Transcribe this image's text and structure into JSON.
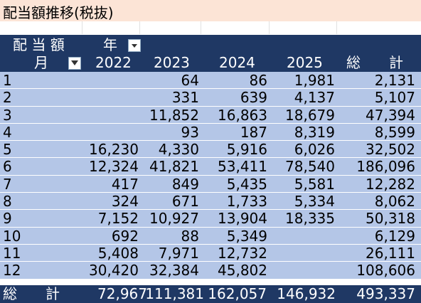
{
  "title": "配当額推移(税抜)",
  "header": {
    "corner_label": "配 当 額",
    "col_field_label": "年",
    "row_field_label": "月",
    "years": [
      "2022",
      "2023",
      "2024",
      "2025"
    ],
    "total_label": "総　　計"
  },
  "rows": [
    {
      "month": "1",
      "y2022": "",
      "y2023": "64",
      "y2024": "86",
      "y2025": "1,981",
      "total": "2,131"
    },
    {
      "month": "2",
      "y2022": "",
      "y2023": "331",
      "y2024": "639",
      "y2025": "4,137",
      "total": "5,107"
    },
    {
      "month": "3",
      "y2022": "",
      "y2023": "11,852",
      "y2024": "16,863",
      "y2025": "18,679",
      "total": "47,394"
    },
    {
      "month": "4",
      "y2022": "",
      "y2023": "93",
      "y2024": "187",
      "y2025": "8,319",
      "total": "8,599"
    },
    {
      "month": "5",
      "y2022": "16,230",
      "y2023": "4,330",
      "y2024": "5,916",
      "y2025": "6,026",
      "total": "32,502"
    },
    {
      "month": "6",
      "y2022": "12,324",
      "y2023": "41,821",
      "y2024": "53,411",
      "y2025": "78,540",
      "total": "186,096"
    },
    {
      "month": "7",
      "y2022": "417",
      "y2023": "849",
      "y2024": "5,435",
      "y2025": "5,581",
      "total": "12,282"
    },
    {
      "month": "8",
      "y2022": "324",
      "y2023": "671",
      "y2024": "1,733",
      "y2025": "5,334",
      "total": "8,062"
    },
    {
      "month": "9",
      "y2022": "7,152",
      "y2023": "10,927",
      "y2024": "13,904",
      "y2025": "18,335",
      "total": "50,318"
    },
    {
      "month": "10",
      "y2022": "692",
      "y2023": "88",
      "y2024": "5,349",
      "y2025": "",
      "total": "6,129"
    },
    {
      "month": "11",
      "y2022": "5,408",
      "y2023": "7,971",
      "y2024": "12,732",
      "y2025": "",
      "total": "26,111"
    },
    {
      "month": "12",
      "y2022": "30,420",
      "y2023": "32,384",
      "y2024": "45,802",
      "y2025": "",
      "total": "108,606"
    }
  ],
  "grand_total": {
    "label": "総　　計",
    "y2022": "72,967",
    "y2023": "111,381",
    "y2024": "162,057",
    "y2025": "146,932",
    "total": "493,337"
  },
  "colors": {
    "header_bg": "#1f3864",
    "row_bg": "#b4c6e7",
    "title_bg": "#fce4d6"
  }
}
